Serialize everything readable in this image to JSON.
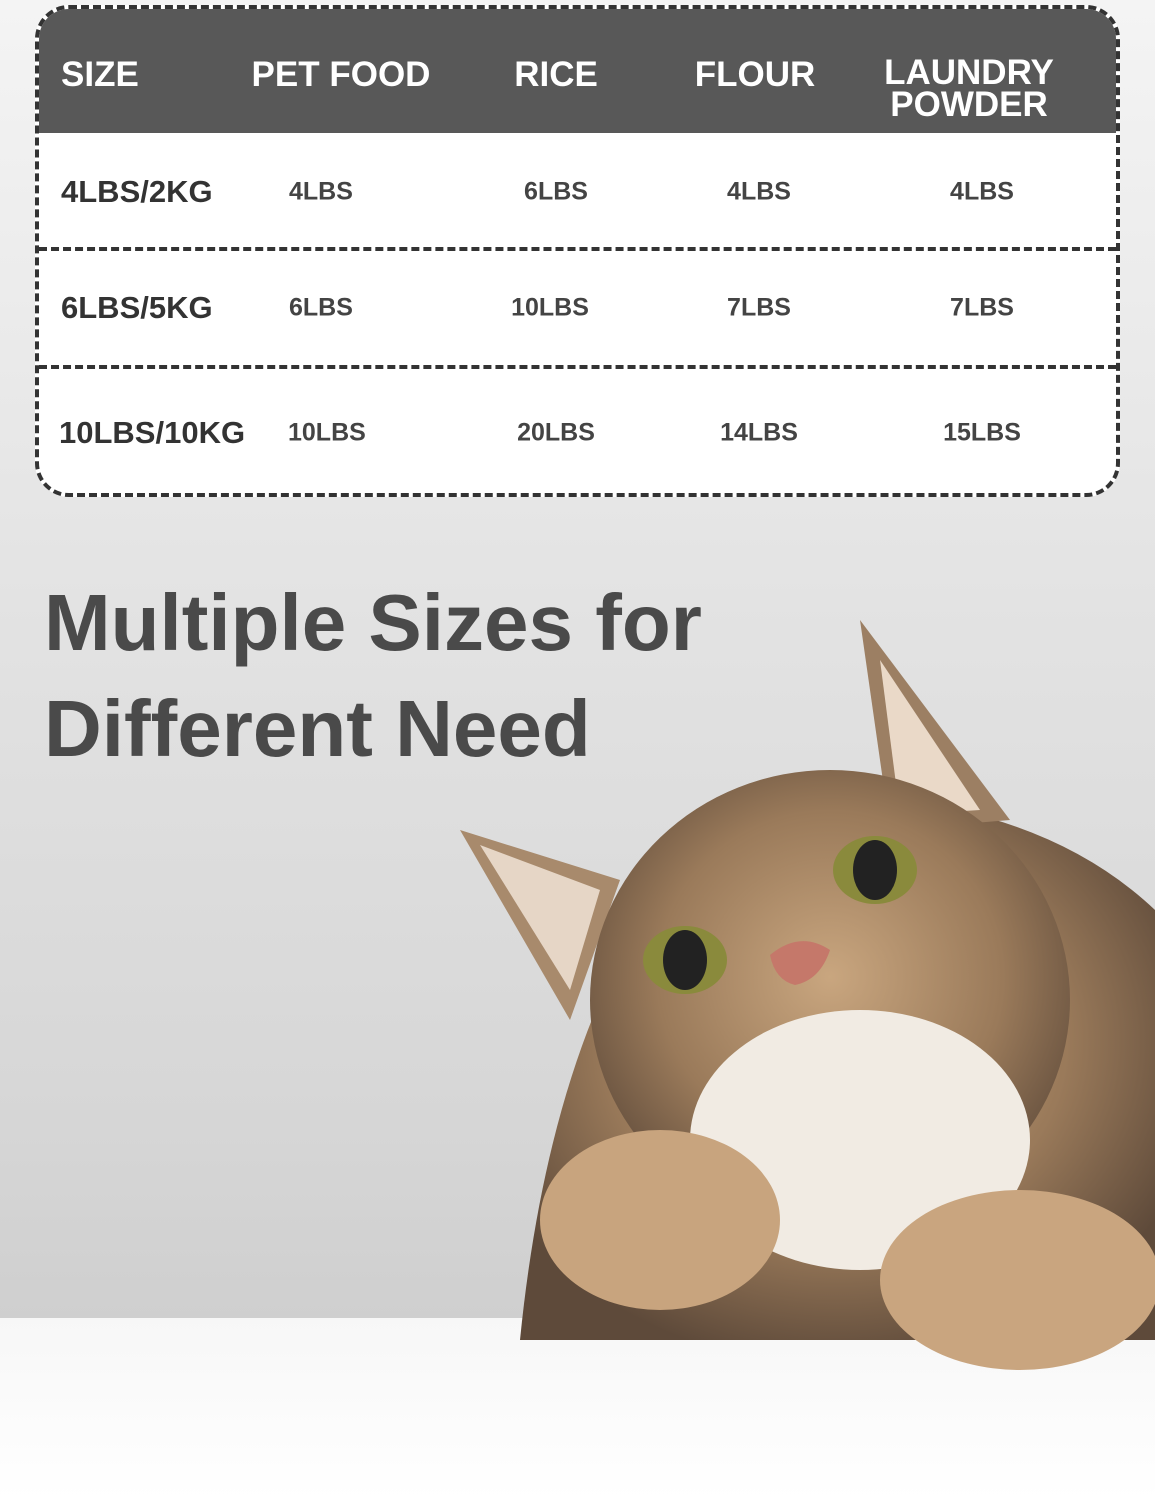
{
  "table": {
    "headers": [
      "SIZE",
      "PET FOOD",
      "RICE",
      "FLOUR",
      "LAUNDRY POWDER"
    ],
    "rows": [
      [
        "4LBS/2KG",
        "4LBS",
        "6LBS",
        "4LBS",
        "4LBS"
      ],
      [
        "6LBS/5KG",
        "6LBS",
        "10LBS",
        "7LBS",
        "7LBS"
      ],
      [
        "10LBS/10KG",
        "10LBS",
        "20LBS",
        "14LBS",
        "15LBS"
      ]
    ]
  },
  "headline": {
    "line1": "Multiple Sizes for",
    "line2": "Different Need"
  },
  "colors": {
    "header_bg": "#585858",
    "text_dark": "#4a4a4a",
    "border": "#333333"
  }
}
